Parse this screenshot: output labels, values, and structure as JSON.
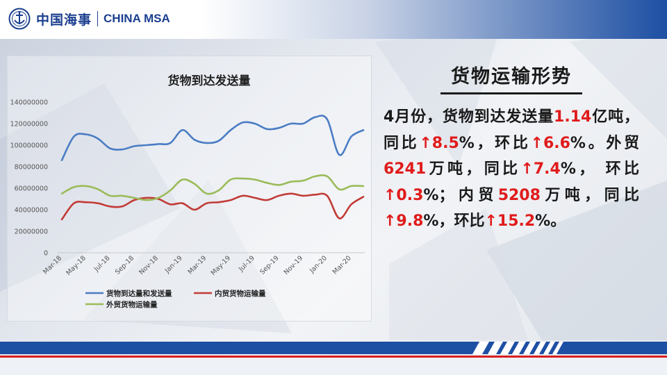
{
  "header": {
    "logo_cn": "中国海事",
    "logo_en": "CHINA MSA"
  },
  "panel": {
    "title": "货物运输形势",
    "segments": [
      {
        "text": "4月份，货物到达发送量",
        "red": false
      },
      {
        "text": "1.14",
        "red": true
      },
      {
        "text": "亿吨，同比",
        "red": false
      },
      {
        "text": "↑8.5",
        "red": true
      },
      {
        "text": "%，环比",
        "red": false
      },
      {
        "text": "↑6.6",
        "red": true
      },
      {
        "text": "%。外贸",
        "red": false
      },
      {
        "text": "6241",
        "red": true
      },
      {
        "text": "万吨，同比",
        "red": false
      },
      {
        "text": "↑7.4",
        "red": true
      },
      {
        "text": "%， 环比 ",
        "red": false
      },
      {
        "text": "↑0.3",
        "red": true
      },
      {
        "text": "%；内贸",
        "red": false
      },
      {
        "text": "5208",
        "red": true
      },
      {
        "text": "万吨，同比",
        "red": false
      },
      {
        "text": "↑9.8",
        "red": true
      },
      {
        "text": "%，环比",
        "red": false
      },
      {
        "text": "↑15.2",
        "red": true
      },
      {
        "text": "%。",
        "red": false
      }
    ]
  },
  "chart_data": {
    "type": "line",
    "title": "货物到达发送量",
    "ylim": [
      0,
      140000000
    ],
    "yticks": [
      0,
      20000000,
      40000000,
      60000000,
      80000000,
      100000000,
      120000000,
      140000000
    ],
    "ytick_labels": [
      "0",
      "20000000",
      "40000000",
      "60000000",
      "80000000",
      "100000000",
      "120000000",
      "140000000"
    ],
    "x": [
      "Mar-18",
      "Apr-18",
      "May-18",
      "Jun-18",
      "Jul-18",
      "Aug-18",
      "Sep-18",
      "Oct-18",
      "Nov-18",
      "Dec-18",
      "Jan-19",
      "Feb-19",
      "Mar-19",
      "Apr-19",
      "May-19",
      "Jun-19",
      "Jul-19",
      "Aug-19",
      "Sep-19",
      "Oct-19",
      "Nov-19",
      "Dec-19",
      "Jan-20",
      "Feb-20",
      "Mar-20",
      "Apr-20"
    ],
    "x_tick_labels": [
      "Mar-18",
      "May-18",
      "Jul-18",
      "Sep-18",
      "Nov-18",
      "Jan-19",
      "Mar-19",
      "May-19",
      "Jul-19",
      "Sep-19",
      "Nov-19",
      "Jan-20",
      "Mar-20"
    ],
    "grid": false,
    "legend_position": "bottom",
    "series": [
      {
        "name": "货物到达量和发送量",
        "color": "#4a7cc4",
        "values": [
          86000000,
          108000000,
          110000000,
          106000000,
          97000000,
          96000000,
          99000000,
          100000000,
          101000000,
          102000000,
          114000000,
          105000000,
          102000000,
          104000000,
          114000000,
          121000000,
          120000000,
          115000000,
          116000000,
          120000000,
          120000000,
          126000000,
          124000000,
          91000000,
          108000000,
          114000000
        ]
      },
      {
        "name": "内贸货物运输量",
        "color": "#c23b36",
        "values": [
          31000000,
          46000000,
          47000000,
          46000000,
          43000000,
          43000000,
          49000000,
          51000000,
          50000000,
          45000000,
          46000000,
          40000000,
          46000000,
          47000000,
          49000000,
          53000000,
          51000000,
          49000000,
          53000000,
          55000000,
          53000000,
          54000000,
          53000000,
          32000000,
          45000000,
          52000000
        ]
      },
      {
        "name": "外贸货物运输量",
        "color": "#9bbb59",
        "values": [
          55000000,
          61000000,
          62000000,
          59000000,
          53000000,
          53000000,
          51000000,
          49000000,
          51000000,
          58000000,
          68000000,
          64000000,
          55000000,
          58000000,
          68000000,
          69000000,
          68000000,
          65000000,
          63000000,
          66000000,
          67000000,
          71000000,
          71000000,
          59000000,
          62000000,
          62000000
        ]
      }
    ]
  }
}
